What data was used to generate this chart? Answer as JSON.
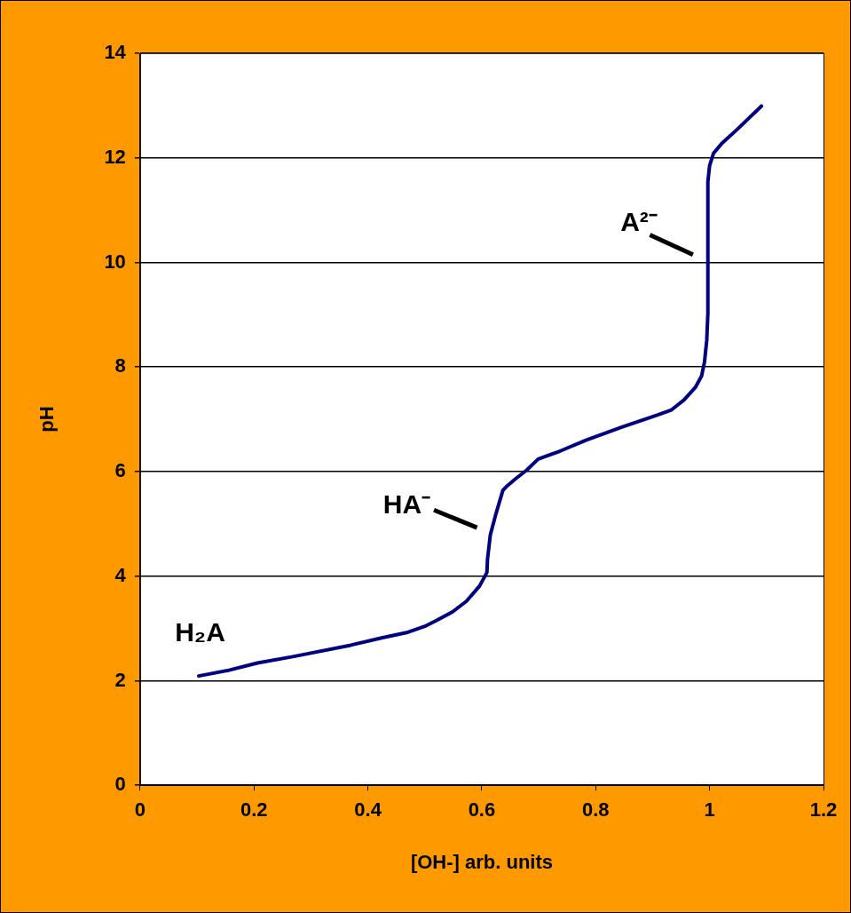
{
  "chart_data": {
    "type": "line",
    "xlabel": "[OH-] arb. units",
    "ylabel": "pH",
    "xlim": [
      0,
      1.2
    ],
    "xticks": [
      0,
      0.2,
      0.4,
      0.6,
      0.8,
      1,
      1.2
    ],
    "ylim": [
      0,
      14
    ],
    "yticks": [
      0,
      2,
      4,
      6,
      8,
      10,
      12,
      14
    ],
    "grid": "y",
    "marker": "none",
    "line_style": "solid",
    "series": [
      {
        "color": "#000080",
        "x": [
          0.103,
          0.156,
          0.206,
          0.268,
          0.37,
          0.424,
          0.468,
          0.5,
          0.52,
          0.549,
          0.573,
          0.596,
          0.609,
          0.61,
          0.615,
          0.624,
          0.637,
          0.643,
          0.659,
          0.679,
          0.699,
          0.737,
          0.783,
          0.846,
          0.908,
          0.933,
          0.955,
          0.975,
          0.986,
          0.991,
          0.995,
          0.997,
          0.997,
          1.0,
          1.007,
          1.021,
          1.049,
          1.091
        ],
        "values": [
          2.09,
          2.2,
          2.34,
          2.46,
          2.68,
          2.82,
          2.92,
          3.04,
          3.15,
          3.32,
          3.52,
          3.81,
          4.07,
          4.32,
          4.79,
          5.16,
          5.64,
          5.71,
          5.86,
          6.03,
          6.24,
          6.39,
          6.6,
          6.85,
          7.08,
          7.18,
          7.37,
          7.61,
          7.83,
          8.09,
          8.51,
          9.03,
          11.54,
          11.85,
          12.09,
          12.27,
          12.55,
          12.99
        ]
      }
    ],
    "annotations": [
      "H₂A",
      "HA⁻",
      "A²⁻"
    ]
  }
}
